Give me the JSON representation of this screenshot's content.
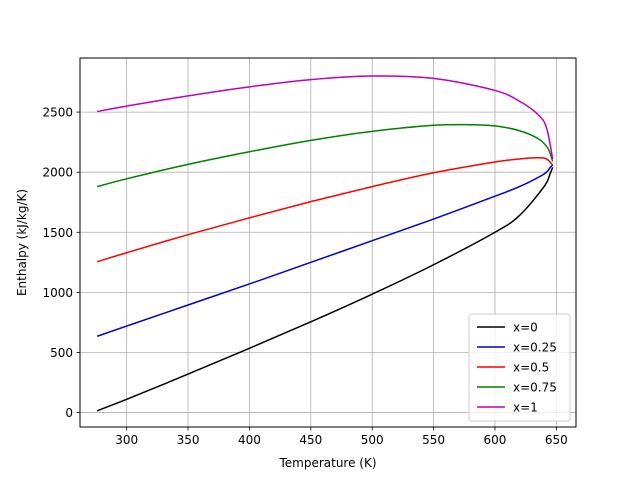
{
  "chart_data": {
    "type": "line",
    "title": "",
    "xlabel": "Temperature (K)",
    "ylabel": "Enthalpy (kJ/kg/K)",
    "xlim": [
      262,
      666
    ],
    "ylim": [
      -120,
      2950
    ],
    "xticks": [
      300,
      350,
      400,
      450,
      500,
      550,
      600,
      650
    ],
    "yticks": [
      0,
      500,
      1000,
      1500,
      2000,
      2500
    ],
    "grid": true,
    "legend_position": "lower-right",
    "series": [
      {
        "name": "x=0",
        "color": "#000000",
        "x": [
          276,
          300,
          350,
          400,
          450,
          500,
          550,
          600,
          620,
          640,
          645,
          647
        ],
        "y": [
          15,
          110,
          320,
          535,
          755,
          985,
          1230,
          1500,
          1640,
          1880,
          1990,
          2040
        ]
      },
      {
        "name": "x=0.25",
        "color": "#0000cc",
        "x": [
          276,
          300,
          350,
          400,
          450,
          500,
          550,
          600,
          620,
          640,
          645,
          647
        ],
        "y": [
          635,
          720,
          895,
          1070,
          1250,
          1430,
          1610,
          1800,
          1880,
          1985,
          2040,
          2060
        ]
      },
      {
        "name": "x=0.5",
        "color": "#ff0000",
        "x": [
          276,
          300,
          350,
          400,
          450,
          500,
          550,
          600,
          620,
          635,
          642,
          647
        ],
        "y": [
          1255,
          1330,
          1480,
          1620,
          1755,
          1880,
          1995,
          2085,
          2110,
          2120,
          2110,
          2060
        ]
      },
      {
        "name": "x=0.75",
        "color": "#008000",
        "x": [
          276,
          300,
          350,
          400,
          450,
          500,
          550,
          580,
          600,
          620,
          635,
          643,
          647
        ],
        "y": [
          1880,
          1945,
          2065,
          2170,
          2265,
          2340,
          2390,
          2395,
          2385,
          2345,
          2280,
          2200,
          2090
        ]
      },
      {
        "name": "x=1",
        "color": "#bf00bf",
        "x": [
          276,
          300,
          350,
          400,
          450,
          500,
          550,
          600,
          620,
          635,
          642,
          647
        ],
        "y": [
          2505,
          2550,
          2635,
          2710,
          2770,
          2800,
          2780,
          2680,
          2590,
          2480,
          2370,
          2110
        ]
      }
    ]
  }
}
